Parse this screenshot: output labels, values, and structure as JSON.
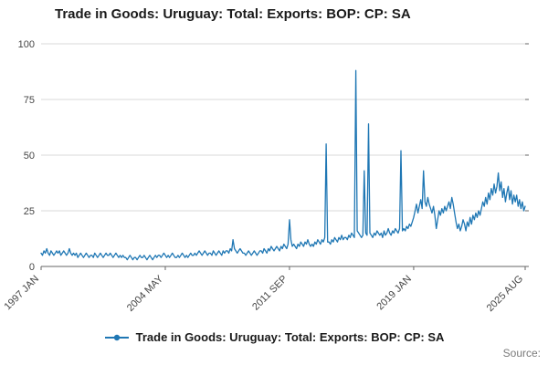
{
  "title": "Trade in Goods: Uruguay: Total: Exports: BOP: CP: SA",
  "legend": {
    "label": "Trade in Goods: Uruguay: Total: Exports: BOP: CP: SA"
  },
  "source_label": "Source:",
  "colors": {
    "line": "#1f77b4",
    "grid": "#d9d9d9",
    "axis": "#666666",
    "tick_text": "#454545",
    "title_text": "#1a1a1a",
    "source_text": "#7a7a7a"
  },
  "chart_data": {
    "type": "line",
    "title": "Trade in Goods: Uruguay: Total: Exports: BOP: CP: SA",
    "xlabel": "",
    "ylabel": "",
    "frequency": "monthly",
    "x_start": "1997 JAN",
    "x_end": "2025 AUG",
    "ylim": [
      0,
      100
    ],
    "y_ticks": [
      0,
      25,
      50,
      75,
      100
    ],
    "x_ticks": [
      {
        "label": "1997 JAN",
        "index": 0
      },
      {
        "label": "2004 MAY",
        "index": 88
      },
      {
        "label": "2011 SEP",
        "index": 176
      },
      {
        "label": "2019 JAN",
        "index": 264
      },
      {
        "label": "2025 AUG",
        "index": 343
      }
    ],
    "grid": "horizontal",
    "legend_position": "bottom",
    "series": [
      {
        "name": "Trade in Goods: Uruguay: Total: Exports: BOP: CP: SA",
        "values": [
          6,
          5,
          7,
          6,
          8,
          6,
          5,
          7,
          6,
          5,
          6,
          7,
          6,
          7,
          5,
          6,
          7,
          6,
          5,
          6,
          8,
          6,
          5,
          6,
          5,
          6,
          4,
          5,
          6,
          5,
          4,
          5,
          6,
          5,
          4,
          5,
          5,
          4,
          6,
          5,
          4,
          5,
          6,
          5,
          4,
          5,
          6,
          5,
          5,
          6,
          5,
          4,
          5,
          6,
          5,
          4,
          5,
          4,
          5,
          4,
          4,
          3,
          4,
          5,
          4,
          3,
          4,
          4,
          3,
          4,
          5,
          4,
          4,
          5,
          4,
          3,
          4,
          5,
          4,
          3,
          4,
          5,
          4,
          5,
          5,
          4,
          5,
          6,
          5,
          4,
          5,
          4,
          5,
          6,
          5,
          4,
          4,
          5,
          4,
          5,
          6,
          5,
          4,
          5,
          4,
          5,
          6,
          5,
          5,
          6,
          5,
          6,
          7,
          6,
          5,
          6,
          7,
          6,
          5,
          6,
          6,
          5,
          7,
          6,
          5,
          6,
          7,
          6,
          5,
          7,
          6,
          7,
          7,
          6,
          8,
          7,
          12,
          8,
          7,
          6,
          7,
          8,
          7,
          6,
          6,
          5,
          6,
          7,
          6,
          5,
          6,
          7,
          6,
          5,
          6,
          7,
          7,
          6,
          8,
          7,
          6,
          8,
          7,
          9,
          8,
          7,
          8,
          9,
          8,
          7,
          9,
          8,
          10,
          9,
          8,
          10,
          21,
          12,
          9,
          10,
          9,
          8,
          10,
          9,
          11,
          10,
          9,
          11,
          10,
          12,
          10,
          9,
          10,
          9,
          11,
          10,
          12,
          11,
          10,
          12,
          11,
          13,
          55,
          11,
          11,
          10,
          12,
          11,
          13,
          12,
          11,
          13,
          12,
          14,
          12,
          13,
          13,
          12,
          14,
          13,
          15,
          14,
          13,
          88,
          16,
          15,
          14,
          13,
          14,
          43,
          15,
          14,
          64,
          15,
          14,
          13,
          15,
          14,
          16,
          15,
          14,
          15,
          13,
          16,
          14,
          15,
          17,
          15,
          14,
          16,
          15,
          17,
          16,
          15,
          17,
          52,
          16,
          17,
          16,
          18,
          17,
          19,
          18,
          20,
          22,
          25,
          28,
          24,
          27,
          30,
          26,
          43,
          29,
          27,
          31,
          28,
          26,
          24,
          27,
          23,
          17,
          21,
          25,
          23,
          26,
          24,
          27,
          25,
          27,
          29,
          26,
          31,
          28,
          24,
          20,
          17,
          19,
          16,
          18,
          21,
          19,
          16,
          20,
          18,
          22,
          19,
          23,
          21,
          24,
          22,
          25,
          23,
          26,
          29,
          27,
          31,
          28,
          33,
          30,
          35,
          32,
          37,
          33,
          36,
          42,
          34,
          38,
          31,
          35,
          29,
          33,
          36,
          30,
          34,
          28,
          32,
          29,
          32,
          27,
          30,
          26,
          29,
          25,
          27
        ]
      }
    ]
  }
}
